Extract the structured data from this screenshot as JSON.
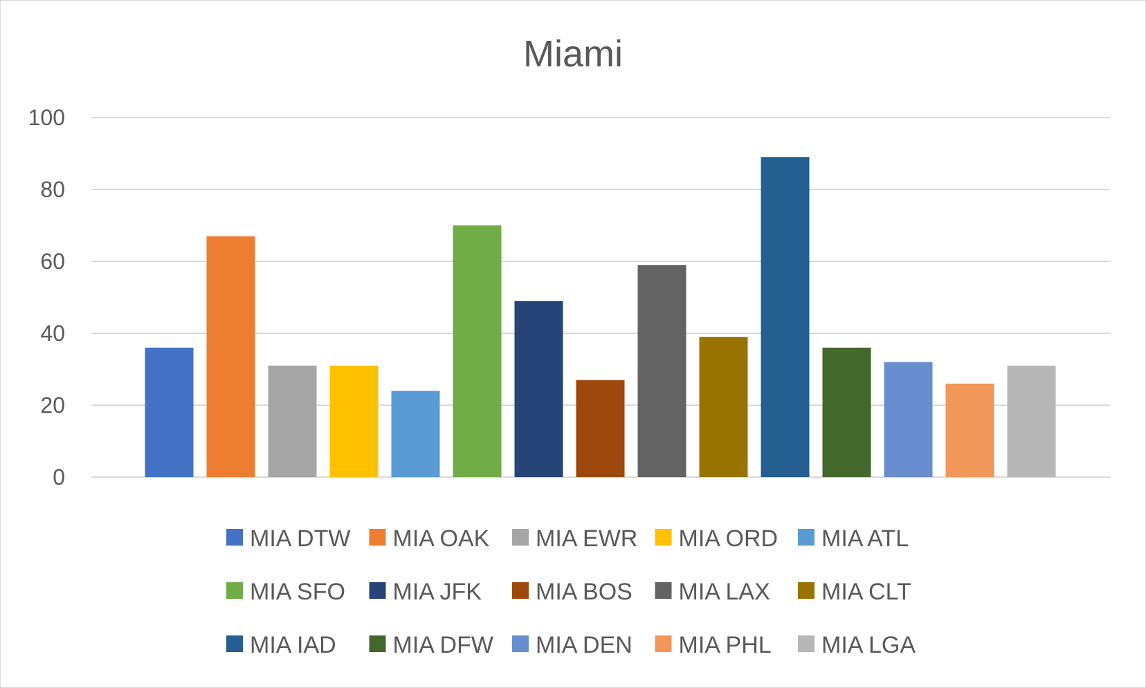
{
  "chart_data": {
    "type": "bar",
    "title": "Miami",
    "xlabel": "",
    "ylabel": "",
    "ylim": [
      0,
      100
    ],
    "yticks": [
      0,
      20,
      40,
      60,
      80,
      100
    ],
    "grid": true,
    "legend_position": "bottom",
    "series": [
      {
        "name": "MIA DTW",
        "value": 36,
        "color": "#4472C4"
      },
      {
        "name": "MIA OAK",
        "value": 67,
        "color": "#ED7D31"
      },
      {
        "name": "MIA EWR",
        "value": 31,
        "color": "#A5A5A5"
      },
      {
        "name": "MIA ORD",
        "value": 31,
        "color": "#FFC000"
      },
      {
        "name": "MIA ATL",
        "value": 24,
        "color": "#5B9BD5"
      },
      {
        "name": "MIA SFO",
        "value": 70,
        "color": "#70AD47"
      },
      {
        "name": "MIA JFK",
        "value": 49,
        "color": "#264478"
      },
      {
        "name": "MIA BOS",
        "value": 27,
        "color": "#9E480E"
      },
      {
        "name": "MIA LAX",
        "value": 59,
        "color": "#636363"
      },
      {
        "name": "MIA CLT",
        "value": 39,
        "color": "#997300"
      },
      {
        "name": "MIA IAD",
        "value": 89,
        "color": "#255E91"
      },
      {
        "name": "MIA DFW",
        "value": 36,
        "color": "#43682B"
      },
      {
        "name": "MIA DEN",
        "value": 32,
        "color": "#698ED0"
      },
      {
        "name": "MIA PHL",
        "value": 26,
        "color": "#F1975A"
      },
      {
        "name": "MIA LGA",
        "value": 31,
        "color": "#B7B7B7"
      }
    ]
  }
}
